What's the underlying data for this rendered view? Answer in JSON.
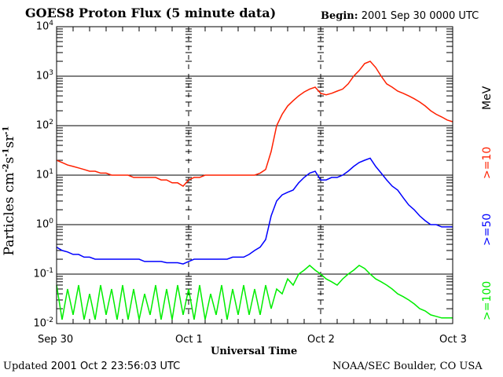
{
  "header": {
    "title": "GOES8 Proton Flux (5 minute data)",
    "begin_label": "Begin:",
    "begin_value": "2001 Sep 30 0000 UTC"
  },
  "footer": {
    "updated_label": "Updated",
    "updated_value": "2001 Oct  2 23:56:03 UTC",
    "source": "NOAA/SEC Boulder, CO USA"
  },
  "chart_data": {
    "type": "line",
    "title": "GOES8 Proton Flux (5 minute data)",
    "xlabel": "Universal Time",
    "ylabel": {
      "base": "Particles cm",
      "parts": [
        [
          "-2",
          "s"
        ],
        [
          "-1",
          "sr"
        ],
        [
          "-1",
          ""
        ]
      ]
    },
    "yscale": "log",
    "ylim": [
      0.01,
      10000
    ],
    "xlim_hours": [
      0,
      72
    ],
    "ytick_exponents": [
      "4",
      "3",
      "2",
      "1",
      "0",
      "-1",
      "-2"
    ],
    "xticks": [
      {
        "hour": 0,
        "label": "Sep 30"
      },
      {
        "hour": 24,
        "label": "Oct 1"
      },
      {
        "hour": 48,
        "label": "Oct 2"
      },
      {
        "hour": 72,
        "label": "Oct 3"
      }
    ],
    "grid": "horizontal at decades",
    "units_label": "MeV",
    "x_hours_step": 1,
    "series": [
      {
        "name": ">=10",
        "color": "#ff2000",
        "values": [
          20,
          18,
          16,
          15,
          14,
          13,
          12,
          12,
          11,
          11,
          10,
          10,
          10,
          10,
          9,
          9,
          9,
          9,
          9,
          8,
          8,
          7,
          7,
          6,
          8,
          9,
          9,
          10,
          10,
          10,
          10,
          10,
          10,
          10,
          10,
          10,
          10,
          11,
          13,
          30,
          100,
          170,
          250,
          320,
          400,
          480,
          550,
          600,
          450,
          420,
          450,
          500,
          550,
          700,
          1000,
          1300,
          1800,
          2000,
          1500,
          1000,
          700,
          600,
          500,
          450,
          400,
          350,
          300,
          250,
          200,
          170,
          150,
          130,
          120
        ]
      },
      {
        "name": ">=50",
        "color": "#0000ff",
        "values": [
          0.35,
          0.3,
          0.28,
          0.25,
          0.25,
          0.22,
          0.22,
          0.2,
          0.2,
          0.2,
          0.2,
          0.2,
          0.2,
          0.2,
          0.2,
          0.2,
          0.18,
          0.18,
          0.18,
          0.18,
          0.17,
          0.17,
          0.17,
          0.16,
          0.18,
          0.2,
          0.2,
          0.2,
          0.2,
          0.2,
          0.2,
          0.2,
          0.22,
          0.22,
          0.22,
          0.25,
          0.3,
          0.35,
          0.5,
          1.5,
          3,
          4,
          4.5,
          5,
          7,
          9,
          11,
          12,
          8,
          8,
          9,
          9,
          10,
          12,
          15,
          18,
          20,
          22,
          15,
          11,
          8,
          6,
          5,
          3.5,
          2.5,
          2,
          1.5,
          1.2,
          1,
          1,
          0.9,
          0.9,
          0.9
        ]
      },
      {
        "name": ">=100",
        "color": "#00ee00",
        "values": [
          0.06,
          0.012,
          0.05,
          0.015,
          0.06,
          0.012,
          0.04,
          0.012,
          0.06,
          0.015,
          0.05,
          0.012,
          0.06,
          0.012,
          0.05,
          0.012,
          0.04,
          0.015,
          0.06,
          0.012,
          0.05,
          0.012,
          0.06,
          0.015,
          0.05,
          0.012,
          0.06,
          0.012,
          0.04,
          0.015,
          0.06,
          0.012,
          0.05,
          0.015,
          0.06,
          0.015,
          0.05,
          0.015,
          0.06,
          0.02,
          0.05,
          0.04,
          0.08,
          0.06,
          0.1,
          0.12,
          0.15,
          0.12,
          0.1,
          0.08,
          0.07,
          0.06,
          0.08,
          0.1,
          0.12,
          0.15,
          0.13,
          0.1,
          0.08,
          0.07,
          0.06,
          0.05,
          0.04,
          0.035,
          0.03,
          0.025,
          0.02,
          0.018,
          0.015,
          0.014,
          0.013,
          0.013,
          0.013
        ]
      }
    ]
  }
}
